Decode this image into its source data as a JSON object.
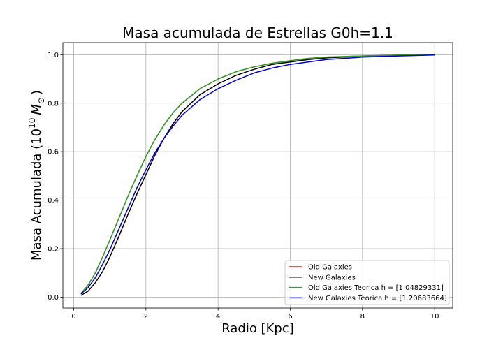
{
  "chart_data": {
    "type": "line",
    "title": "Masa acumulada de Estrellas G0h=1.1",
    "xlabel": "Radio [Kpc]",
    "ylabel_main": "Masa Acumulada (10",
    "ylabel_sup": "10",
    "ylabel_unit": "M",
    "ylabel_sub": "⊙",
    "ylabel_close": ")",
    "xlim": [
      -0.3,
      10.5
    ],
    "ylim": [
      -0.045,
      1.05
    ],
    "xticks": [
      0,
      2,
      4,
      6,
      8,
      10
    ],
    "xtick_labels": [
      "0",
      "2",
      "4",
      "6",
      "8",
      "10"
    ],
    "yticks": [
      0.0,
      0.2,
      0.4,
      0.6,
      0.8,
      1.0
    ],
    "ytick_labels": [
      "0.0",
      "0.2",
      "0.4",
      "0.6",
      "0.8",
      "1.0"
    ],
    "grid": true,
    "legend_position": "lower-right",
    "x": [
      0.2,
      0.4,
      0.6,
      0.8,
      1.0,
      1.25,
      1.5,
      1.75,
      2.0,
      2.25,
      2.5,
      2.75,
      3.0,
      3.5,
      4.0,
      4.5,
      5.0,
      5.5,
      6.0,
      6.5,
      7.0,
      8.0,
      9.0,
      10.0
    ],
    "series": [
      {
        "name": "Old Galaxies",
        "color": "#d62728",
        "values": [
          0.015,
          0.05,
          0.1,
          0.165,
          0.235,
          0.325,
          0.415,
          0.5,
          0.58,
          0.65,
          0.71,
          0.76,
          0.8,
          0.86,
          0.9,
          0.93,
          0.95,
          0.965,
          0.975,
          0.985,
          0.99,
          0.995,
          0.998,
          1.0
        ]
      },
      {
        "name": "New Galaxies",
        "color": "#000000",
        "values": [
          0.007,
          0.025,
          0.06,
          0.105,
          0.165,
          0.25,
          0.34,
          0.425,
          0.505,
          0.585,
          0.655,
          0.715,
          0.765,
          0.835,
          0.88,
          0.915,
          0.94,
          0.96,
          0.97,
          0.98,
          0.987,
          0.994,
          0.998,
          1.0
        ]
      },
      {
        "name": "Old Galaxies Teorica h = [1.04829331]",
        "color": "#2ca02c",
        "values": [
          0.015,
          0.05,
          0.1,
          0.165,
          0.235,
          0.325,
          0.415,
          0.5,
          0.58,
          0.65,
          0.71,
          0.76,
          0.8,
          0.86,
          0.9,
          0.93,
          0.95,
          0.965,
          0.975,
          0.985,
          0.99,
          0.995,
          0.998,
          1.0
        ]
      },
      {
        "name": "New Galaxies Teorica h = [1.20683664]",
        "color": "#0000cc",
        "values": [
          0.013,
          0.04,
          0.08,
          0.135,
          0.195,
          0.28,
          0.365,
          0.45,
          0.525,
          0.595,
          0.655,
          0.705,
          0.75,
          0.815,
          0.86,
          0.895,
          0.925,
          0.945,
          0.96,
          0.97,
          0.98,
          0.99,
          0.995,
          0.999
        ]
      }
    ]
  }
}
